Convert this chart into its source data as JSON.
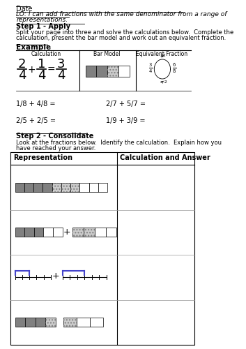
{
  "title": "Date",
  "lo_line1": "LO: I can add fractions with the same denominator from a range of",
  "lo_line2": "representations.",
  "step1_title": "Step 1 - Apply",
  "step1_line1": "Split your page into three and solve the calculations below.  Complete the",
  "step1_line2": "calculation, present the bar model and work out an equivalent fraction.",
  "example_label": "Example",
  "col_labels": [
    "Calculation",
    "Bar Model",
    "Equivalent Fraction"
  ],
  "step2_title": "Step 2 - Consolidate",
  "step2_line1": "Look at the fractions below.  Identify the calculation.  Explain how you",
  "step2_line2": "have reached your answer.",
  "table_headers": [
    "Representation",
    "Calculation and Answer"
  ],
  "practice_calcs": [
    "1/8 + 4/8 =",
    "2/5 + 2/5 ="
  ],
  "practice_calcs2": [
    "2/7 + 5/7 =",
    "1/9 + 3/9 ="
  ],
  "bg_color": "#ffffff",
  "text_color": "#000000",
  "gray_dark": "#808080",
  "gray_light": "#cccccc",
  "blue_color": "#4444cc"
}
